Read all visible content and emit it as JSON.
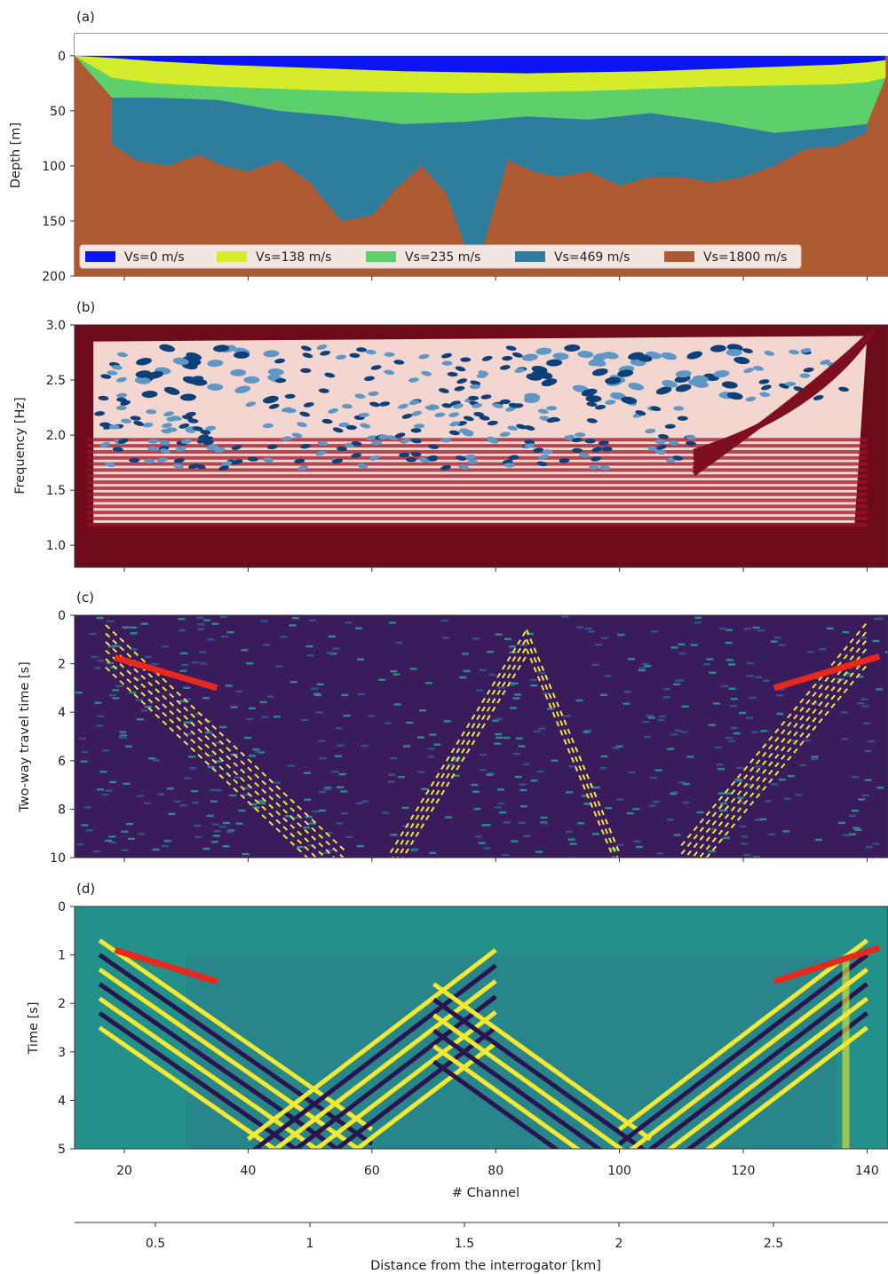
{
  "chart_data": [
    {
      "panel": "(a)",
      "type": "area",
      "ylabel": "Depth [m]",
      "ylim": [
        200,
        -20
      ],
      "yticks": [
        "0",
        "50",
        "100",
        "150",
        "200"
      ],
      "xlim": [
        12,
        143
      ],
      "legend_position": "bottom",
      "series": [
        {
          "name": "Vs=0 m/s",
          "color": "#0a14f5",
          "top_depth": [
            0,
            0,
            0,
            0,
            0,
            0,
            0,
            0,
            0,
            0,
            0,
            0,
            0,
            0,
            0,
            0
          ],
          "bottom_depth": [
            0,
            2,
            5,
            8,
            10,
            12,
            14,
            15,
            16,
            15,
            14,
            12,
            10,
            8,
            6,
            4
          ]
        },
        {
          "name": "Vs=138 m/s",
          "color": "#d4ec2a",
          "x": [
            12,
            18,
            25,
            35,
            45,
            55,
            65,
            75,
            85,
            95,
            105,
            115,
            125,
            135,
            140,
            143
          ],
          "bottom_depth": [
            0,
            20,
            25,
            28,
            30,
            32,
            33,
            34,
            33,
            32,
            30,
            28,
            27,
            26,
            24,
            20
          ]
        },
        {
          "name": "Vs=235 m/s",
          "color": "#5cd06a",
          "x": [
            12,
            18,
            25,
            35,
            45,
            55,
            65,
            75,
            85,
            95,
            105,
            115,
            125,
            135,
            140,
            143
          ],
          "bottom_depth": [
            0,
            38,
            38,
            40,
            50,
            55,
            62,
            60,
            55,
            58,
            52,
            60,
            70,
            65,
            62,
            20
          ]
        },
        {
          "name": "Vs=469 m/s",
          "color": "#2f7d9c",
          "x": [
            18,
            22,
            27,
            32,
            36,
            40,
            45,
            50,
            55,
            60,
            64,
            68,
            72,
            75,
            78,
            82,
            86,
            90,
            95,
            100,
            105,
            110,
            115,
            120,
            125,
            130,
            135,
            140
          ],
          "bottom_depth": [
            80,
            95,
            100,
            90,
            100,
            105,
            95,
            115,
            150,
            145,
            120,
            100,
            125,
            172,
            172,
            95,
            105,
            110,
            105,
            118,
            110,
            110,
            115,
            110,
            100,
            85,
            82,
            70
          ]
        },
        {
          "name": "Vs=1800 m/s",
          "color": "#ad5a32"
        }
      ]
    },
    {
      "panel": "(b)",
      "type": "heatmap",
      "ylabel": "Frequency [Hz]",
      "ylim": [
        0.8,
        3.0
      ],
      "yticks": [
        "1.0",
        "1.5",
        "2.0",
        "2.5",
        "3.0"
      ],
      "colormap": "RdBu (dark red background, blue interference fringes)"
    },
    {
      "panel": "(c)",
      "type": "heatmap",
      "ylabel": "Two-way travel time [s]",
      "ylim": [
        0,
        10
      ],
      "yticks": [
        "0",
        "2",
        "4",
        "6",
        "8",
        "10"
      ],
      "colormap": "viridis (purple background, yellow reflections)",
      "annotations": [
        {
          "color": "#e8281c",
          "x": [
            18.5,
            35
          ],
          "y": [
            1.75,
            3.0
          ]
        },
        {
          "color": "#e8281c",
          "x": [
            125,
            142
          ],
          "y": [
            3.0,
            1.7
          ]
        }
      ]
    },
    {
      "panel": "(d)",
      "type": "heatmap",
      "xlabel": "# Channel",
      "ylabel": "Time [s]",
      "ylim": [
        0,
        5
      ],
      "yticks": [
        "0",
        "1",
        "2",
        "3",
        "4",
        "5"
      ],
      "xticks": [
        "20",
        "40",
        "60",
        "80",
        "100",
        "120",
        "140"
      ],
      "colormap": "viridis (teal background, yellow/purple wavefronts)",
      "annotations": [
        {
          "color": "#e8281c",
          "x": [
            18.5,
            35
          ],
          "y": [
            0.9,
            1.55
          ]
        },
        {
          "color": "#e8281c",
          "x": [
            125,
            142
          ],
          "y": [
            1.55,
            0.85
          ]
        }
      ]
    }
  ],
  "secondary_axis": {
    "xlabel": "Distance from the interrogator [km]",
    "xticks": [
      "0.5",
      "1",
      "1.5",
      "2",
      "2.5"
    ]
  },
  "panel_labels": [
    "(a)",
    "(b)",
    "(c)",
    "(d)"
  ]
}
